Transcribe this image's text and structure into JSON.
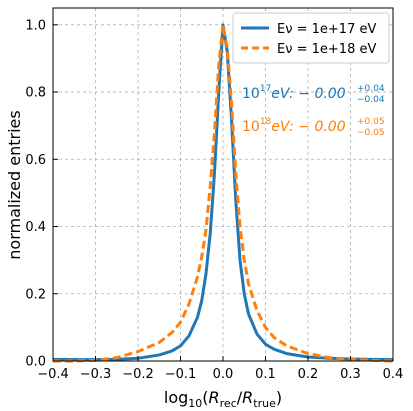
{
  "chart_data": {
    "type": "line",
    "xlabel": "log10(Rrec/Rtrue)",
    "ylabel": "normalized entries",
    "xlim": [
      -0.4,
      0.4
    ],
    "ylim": [
      0.0,
      1.05
    ],
    "xticks": [
      -0.4,
      -0.3,
      -0.2,
      -0.1,
      0.0,
      0.1,
      0.2,
      0.3,
      0.4
    ],
    "xtick_labels": [
      "−0.4",
      "−0.3",
      "−0.2",
      "−0.1",
      "0.0",
      "0.1",
      "0.2",
      "0.3",
      "0.4"
    ],
    "yticks": [
      0.0,
      0.2,
      0.4,
      0.6,
      0.8,
      1.0
    ],
    "ytick_labels": [
      "0.0",
      "0.2",
      "0.4",
      "0.6",
      "0.8",
      "1.0"
    ],
    "grid": true,
    "legend_position": "top-right",
    "series": [
      {
        "name": "Eν = 1e+17 eV",
        "color": "#1f77b4",
        "style": "solid",
        "x": [
          -0.4,
          -0.35,
          -0.3,
          -0.25,
          -0.2,
          -0.15,
          -0.12,
          -0.1,
          -0.08,
          -0.06,
          -0.05,
          -0.04,
          -0.03,
          -0.02,
          -0.01,
          0.0,
          0.01,
          0.02,
          0.03,
          0.04,
          0.05,
          0.06,
          0.08,
          0.1,
          0.12,
          0.15,
          0.2,
          0.25,
          0.3,
          0.35,
          0.4
        ],
        "y": [
          0.005,
          0.004,
          0.004,
          0.005,
          0.008,
          0.018,
          0.03,
          0.045,
          0.075,
          0.13,
          0.18,
          0.26,
          0.38,
          0.56,
          0.8,
          1.0,
          0.92,
          0.72,
          0.48,
          0.3,
          0.2,
          0.14,
          0.08,
          0.05,
          0.035,
          0.022,
          0.012,
          0.008,
          0.006,
          0.005,
          0.004
        ]
      },
      {
        "name": "Eν = 1e+18 eV",
        "color": "#ff7f0e",
        "style": "dashed",
        "x": [
          -0.4,
          -0.35,
          -0.3,
          -0.25,
          -0.2,
          -0.15,
          -0.12,
          -0.1,
          -0.08,
          -0.06,
          -0.05,
          -0.04,
          -0.03,
          -0.02,
          -0.01,
          0.0,
          0.01,
          0.02,
          0.03,
          0.04,
          0.05,
          0.06,
          0.08,
          0.1,
          0.12,
          0.15,
          0.2,
          0.25,
          0.3,
          0.35,
          0.4
        ],
        "y": [
          0.0,
          0.0,
          0.002,
          0.01,
          0.028,
          0.055,
          0.085,
          0.115,
          0.17,
          0.25,
          0.31,
          0.39,
          0.52,
          0.68,
          0.88,
          1.0,
          0.93,
          0.77,
          0.56,
          0.4,
          0.3,
          0.23,
          0.15,
          0.1,
          0.07,
          0.045,
          0.022,
          0.01,
          0.005,
          0.002,
          0.0
        ]
      }
    ],
    "annotations": [
      {
        "base": "10",
        "sup": "17",
        "text": "eV: − 0.00",
        "up": "+0.04",
        "down": "−0.04",
        "color": "#1f77b4"
      },
      {
        "base": "10",
        "sup": "18",
        "text": "eV: − 0.00",
        "up": "+0.05",
        "down": "−0.05",
        "color": "#ff7f0e"
      }
    ]
  }
}
